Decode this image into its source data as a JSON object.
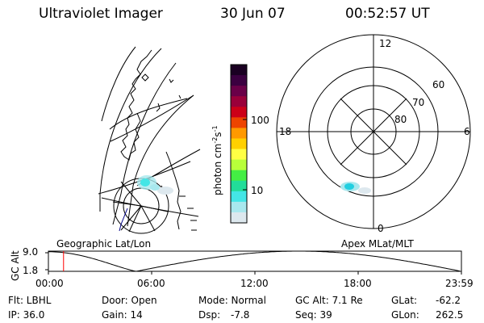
{
  "header": {
    "instrument": "Ultraviolet Imager",
    "date": "30 Jun 07",
    "time": "00:52:57 UT"
  },
  "geo_panel": {
    "label": "Geographic Lat/Lon"
  },
  "apex_panel": {
    "label": "Apex MLat/MLT",
    "mlt_labels": [
      "12",
      "18",
      "6",
      "0"
    ],
    "lat_labels": [
      "60",
      "70",
      "80"
    ]
  },
  "colorbar": {
    "unit_label": "photon cm",
    "unit_exp1": "-2",
    "unit_s": "s",
    "unit_exp2": "-1",
    "tick_labels": [
      "100",
      "10"
    ],
    "colors": [
      "#1a0022",
      "#3b0040",
      "#6a0048",
      "#9a003a",
      "#cc0018",
      "#ee4400",
      "#ff9900",
      "#ffd000",
      "#ffff44",
      "#b8ff3a",
      "#44ee44",
      "#22dd99",
      "#44e6e6",
      "#a8e8ee",
      "#dde8ee"
    ]
  },
  "altitude_plot": {
    "ylabel": "GC Alt",
    "ytick_labels": [
      "9.0",
      "1.8"
    ],
    "time_labels": [
      "00:00",
      "06:00",
      "12:00",
      "18:00",
      "23:59"
    ],
    "ylim": [
      1.8,
      9.0
    ],
    "xlim_hours": [
      0,
      24
    ],
    "marker_hour": 0.88,
    "colors": {
      "marker": "#ff0000",
      "curve": "#000000"
    }
  },
  "info": {
    "filter": "Flt: LBHL",
    "ip": "IP: 36.0",
    "door": "Door: Open",
    "gain": "Gain: 14",
    "mode": "Mode: Normal",
    "dsp_label": "Dsp:",
    "dsp_value": "-7.8",
    "gc_alt": "GC Alt: 7.1 Re",
    "seq": "Seq: 39",
    "glat_label": "GLat:",
    "glat_value": "-62.2",
    "glon_label": "GLon:",
    "glon_value": "262.5"
  }
}
